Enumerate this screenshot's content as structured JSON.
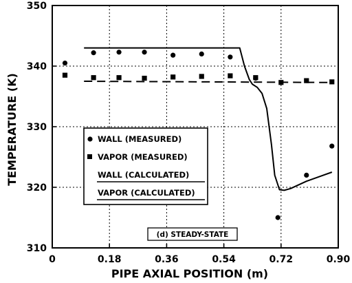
{
  "chart_data": {
    "type": "scatter",
    "xlabel": "PIPE AXIAL POSITION (m)",
    "ylabel": "TEMPERATURE (K)",
    "xlim": [
      0,
      0.9
    ],
    "ylim": [
      310,
      350
    ],
    "x_ticks": [
      "0",
      "0.18",
      "0.36",
      "0.54",
      "0.72",
      "0.90"
    ],
    "y_ticks": [
      "310",
      "320",
      "330",
      "340",
      "350"
    ],
    "grid": true,
    "annotation": "(d) STEADY-STATE",
    "legend": {
      "position": "lower-left",
      "entries": [
        "WALL (MEASURED)",
        "VAPOR (MEASURED)",
        "WALL (CALCULATED)",
        "VAPOR (CALCULATED)"
      ]
    },
    "series": [
      {
        "name": "WALL (MEASURED)",
        "marker": "circle",
        "x": [
          0.04,
          0.13,
          0.21,
          0.29,
          0.38,
          0.47,
          0.56,
          0.64,
          0.71,
          0.8,
          0.88
        ],
        "y": [
          340.5,
          342.2,
          342.3,
          342.3,
          341.8,
          342.0,
          341.5,
          338.0,
          315.0,
          322.0,
          326.8
        ]
      },
      {
        "name": "VAPOR (MEASURED)",
        "marker": "square",
        "x": [
          0.04,
          0.13,
          0.21,
          0.29,
          0.38,
          0.47,
          0.56,
          0.64,
          0.72,
          0.8,
          0.88
        ],
        "y": [
          338.5,
          338.1,
          338.1,
          338.0,
          338.2,
          338.3,
          338.4,
          338.1,
          337.3,
          337.6,
          337.4
        ]
      },
      {
        "name": "WALL (CALCULATED)",
        "line": "solid",
        "x": [
          0.1,
          0.59,
          0.605,
          0.62,
          0.63,
          0.645,
          0.66,
          0.675,
          0.69,
          0.7,
          0.715,
          0.73,
          0.75,
          0.8,
          0.88
        ],
        "y": [
          343.0,
          343.0,
          340.0,
          337.8,
          337.0,
          336.5,
          335.5,
          333.0,
          327.0,
          322.0,
          319.6,
          319.5,
          319.8,
          321.0,
          322.5
        ]
      },
      {
        "name": "VAPOR (CALCULATED)",
        "line": "dashed",
        "x": [
          0.1,
          0.88
        ],
        "y": [
          337.5,
          337.3
        ]
      }
    ]
  }
}
